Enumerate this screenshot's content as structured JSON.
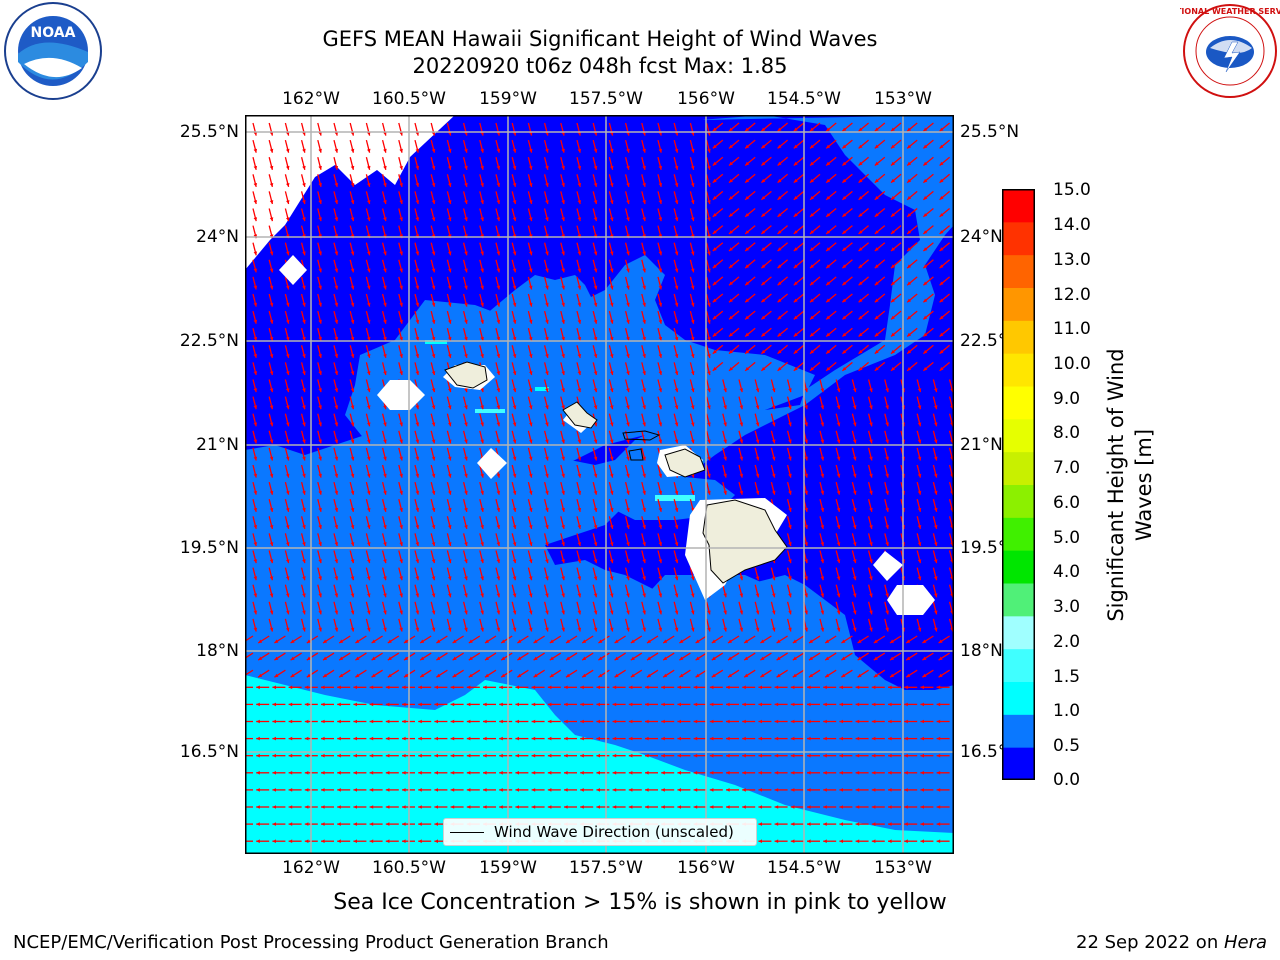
{
  "title": {
    "line1": "GEFS MEAN Hawaii Significant Height of Wind Waves",
    "line2": "20220920 t06z 048h fcst   Max: 1.85"
  },
  "map": {
    "lon_ticks": [
      "162°W",
      "160.5°W",
      "159°W",
      "157.5°W",
      "156°W",
      "154.5°W",
      "153°W"
    ],
    "lat_ticks_left": [
      "25.5°N",
      "24°N",
      "22.5°N",
      "21°N",
      "19.5°N",
      "18°N",
      "16.5°N"
    ],
    "lat_ticks_right": [
      "25.5°N",
      "24°N",
      "22.5°N",
      "21°N",
      "19.5°N",
      "18°N",
      "16.5°N"
    ],
    "legend_label": "Wind Wave Direction (unscaled)",
    "colors": {
      "band_0_0_5": "#0000ff",
      "band_0_5_1_0": "#0a78ff",
      "band_1_0_1_5": "#00ffff",
      "land": "#efeedc",
      "arrow": "#ff0000"
    }
  },
  "colorbar": {
    "ticks": [
      "15.0",
      "14.0",
      "13.0",
      "12.0",
      "11.0",
      "10.0",
      "9.0",
      "8.0",
      "7.0",
      "6.0",
      "5.0",
      "4.0",
      "3.0",
      "2.0",
      "1.5",
      "1.0",
      "0.5",
      "0.0"
    ],
    "label_line1": "Significant Height of Wind",
    "label_line2": "Waves [m]",
    "colors": [
      "#0000ff",
      "#0a78ff",
      "#00ffff",
      "#40ffff",
      "#a0ffff",
      "#50f078",
      "#00e600",
      "#40f000",
      "#8cf000",
      "#c8f000",
      "#e6ff00",
      "#ffff00",
      "#ffe600",
      "#ffc800",
      "#ff9600",
      "#ff6400",
      "#ff3200",
      "#ff0000"
    ]
  },
  "note": "Sea Ice Concentration > 15% is shown in pink to yellow",
  "footer": {
    "left": "NCEP/EMC/Verification Post Processing Product Generation Branch",
    "date": "22 Sep 2022 on ",
    "machine": "Hera"
  },
  "logos": {
    "noaa_text": "NOAA",
    "nws_text": "NATIONAL WEATHER SERVICE"
  }
}
